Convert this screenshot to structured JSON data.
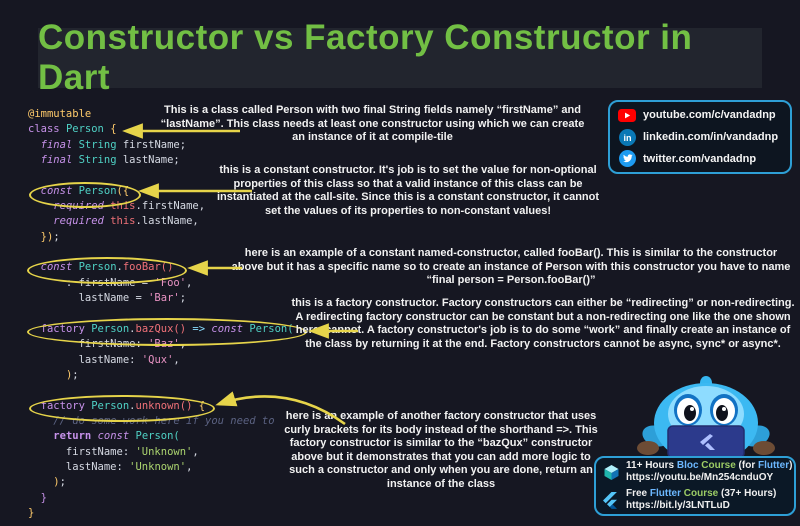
{
  "page": {
    "title": "Constructor vs Factory Constructor in Dart"
  },
  "colors": {
    "accent_yellow": "#e6d44a",
    "title_green": "#72bf44",
    "box_border_blue": "#2e9fd6",
    "bg": "#161722",
    "titlebar_bg": "#22252e"
  },
  "code": {
    "lines": [
      {
        "tokens": [
          {
            "t": "@immutable",
            "c": "yellow"
          }
        ]
      },
      {
        "tokens": [
          {
            "t": "class ",
            "c": "purple"
          },
          {
            "t": "Person ",
            "c": "teal"
          },
          {
            "t": "{",
            "c": "yellow"
          }
        ]
      },
      {
        "tokens": [
          {
            "t": "  "
          },
          {
            "t": "final ",
            "c": "purple",
            "i": 1
          },
          {
            "t": "String ",
            "c": "teal"
          },
          {
            "t": "firstName;"
          }
        ]
      },
      {
        "tokens": [
          {
            "t": "  "
          },
          {
            "t": "final ",
            "c": "purple",
            "i": 1
          },
          {
            "t": "String ",
            "c": "teal"
          },
          {
            "t": "lastName;"
          }
        ]
      },
      {
        "tokens": []
      },
      {
        "tokens": [
          {
            "t": "  "
          },
          {
            "t": "const ",
            "c": "purple",
            "i": 1
          },
          {
            "t": "Person",
            "c": "teal"
          },
          {
            "t": "({",
            "c": "yellow"
          }
        ]
      },
      {
        "tokens": [
          {
            "t": "    "
          },
          {
            "t": "required ",
            "c": "purple",
            "i": 1
          },
          {
            "t": "this",
            "c": "red"
          },
          {
            "t": ".firstName,"
          }
        ]
      },
      {
        "tokens": [
          {
            "t": "    "
          },
          {
            "t": "required ",
            "c": "purple",
            "i": 1
          },
          {
            "t": "this",
            "c": "red"
          },
          {
            "t": ".lastName,"
          }
        ]
      },
      {
        "tokens": [
          {
            "t": "  "
          },
          {
            "t": "})",
            "c": "yellow"
          },
          {
            "t": ";"
          }
        ]
      },
      {
        "tokens": []
      },
      {
        "tokens": [
          {
            "t": "  "
          },
          {
            "t": "const ",
            "c": "purple",
            "i": 1
          },
          {
            "t": "Person",
            "c": "teal"
          },
          {
            "t": "."
          },
          {
            "t": "fooBar()",
            "c": "red"
          }
        ]
      },
      {
        "tokens": [
          {
            "t": "      : firstName = "
          },
          {
            "t": "'Foo'",
            "c": "pink"
          },
          {
            "t": ","
          }
        ]
      },
      {
        "tokens": [
          {
            "t": "        lastName = "
          },
          {
            "t": "'Bar'",
            "c": "pink"
          },
          {
            "t": ";"
          }
        ]
      },
      {
        "tokens": []
      },
      {
        "tokens": [
          {
            "t": "  "
          },
          {
            "t": "factory ",
            "c": "purple"
          },
          {
            "t": "Person",
            "c": "teal"
          },
          {
            "t": "."
          },
          {
            "t": "bazQux()",
            "c": "red"
          },
          {
            "t": " "
          },
          {
            "t": "=>",
            "c": "arrow"
          },
          {
            "t": " "
          },
          {
            "t": "const ",
            "c": "purple",
            "i": 1
          },
          {
            "t": "Person(",
            "c": "teal"
          }
        ]
      },
      {
        "tokens": [
          {
            "t": "        firstName: "
          },
          {
            "t": "'Baz'",
            "c": "pink"
          },
          {
            "t": ","
          }
        ]
      },
      {
        "tokens": [
          {
            "t": "        lastName: "
          },
          {
            "t": "'Qux'",
            "c": "pink"
          },
          {
            "t": ","
          }
        ]
      },
      {
        "tokens": [
          {
            "t": "      "
          },
          {
            "t": ")",
            "c": "yellow"
          },
          {
            "t": ";"
          }
        ]
      },
      {
        "tokens": []
      },
      {
        "tokens": [
          {
            "t": "  "
          },
          {
            "t": "factory ",
            "c": "purple"
          },
          {
            "t": "Person",
            "c": "teal"
          },
          {
            "t": "."
          },
          {
            "t": "unknown()",
            "c": "red"
          },
          {
            "t": " "
          },
          {
            "t": "{",
            "c": "yellow"
          }
        ]
      },
      {
        "tokens": [
          {
            "t": "    "
          },
          {
            "t": "// do some work here if you need to",
            "c": "comment",
            "i": 1
          }
        ]
      },
      {
        "tokens": [
          {
            "t": "    "
          },
          {
            "t": "return ",
            "c": "purple",
            "b": 1
          },
          {
            "t": "const ",
            "c": "purple",
            "i": 1
          },
          {
            "t": "Person(",
            "c": "teal"
          }
        ]
      },
      {
        "tokens": [
          {
            "t": "      firstName: "
          },
          {
            "t": "'Unknown'",
            "c": "green"
          },
          {
            "t": ","
          }
        ]
      },
      {
        "tokens": [
          {
            "t": "      lastName: "
          },
          {
            "t": "'Unknown'",
            "c": "green"
          },
          {
            "t": ","
          }
        ]
      },
      {
        "tokens": [
          {
            "t": "    "
          },
          {
            "t": ")",
            "c": "yellow"
          },
          {
            "t": ";"
          }
        ]
      },
      {
        "tokens": [
          {
            "t": "  "
          },
          {
            "t": "}",
            "c": "purple"
          }
        ]
      },
      {
        "tokens": [
          {
            "t": "}",
            "c": "yellow"
          }
        ]
      }
    ]
  },
  "annotations": [
    {
      "text": "This is a class called Person with two final String fields namely “firstName” and “lastName”. This class needs at least one constructor using which we can create an instance of it at compile-tile"
    },
    {
      "text": "this is a constant constructor. It's job is to set the value for non-optional properties of this class so that a valid instance of this class can be instantiated at the call-site. Since this is a constant constructor, it cannot set the values of its properties to non-constant values!"
    },
    {
      "text": "here is an example of a constant named-constructor, called fooBar(). This is similar to the constructor above but it has a specific name so to create an instance of Person with this constructor you have to name “final person = Person.fooBar()”"
    },
    {
      "text": "this is a factory constructor. Factory constructors can either be “redirecting” or non-redirecting. A redirecting factory constructor can be constant but a non-redirecting one like the one shown here, cannot. A factory constructor's job is to do some “work” and finally create an instance of the class by returning it at the end. Factory constructors cannot be async, sync* or async*."
    },
    {
      "text": "here is an example of another factory constructor that uses curly brackets for its body instead of the shorthand =>. This factory constructor is similar to the “bazQux” constructor above but it demonstrates that you can add more logic to such a constructor and only when you are done, return an instance of the class"
    }
  ],
  "social": {
    "items": [
      {
        "icon": "youtube-icon",
        "label": "youtube.com/c/vandadnp"
      },
      {
        "icon": "linkedin-icon",
        "label": "linkedin.com/in/vandadnp"
      },
      {
        "icon": "twitter-icon",
        "label": "twitter.com/vandadnp"
      }
    ]
  },
  "courses": {
    "bloc_line": [
      {
        "t": "11+ Hours ",
        "c": "w"
      },
      {
        "t": "Bloc",
        "c": "blue"
      },
      {
        "t": " Course",
        "c": "green"
      },
      {
        "t": " (for ",
        "c": "w"
      },
      {
        "t": "Flutter",
        "c": "blue"
      },
      {
        "t": ")",
        "c": "w"
      }
    ],
    "bloc_url": "https://youtu.be/Mn254cnduOY",
    "flutter_line": [
      {
        "t": "Free ",
        "c": "w"
      },
      {
        "t": "Flutter",
        "c": "blue"
      },
      {
        "t": " Course",
        "c": "green"
      },
      {
        "t": " (37+ Hours)",
        "c": "w"
      }
    ],
    "flutter_url": "https://bit.ly/3LNTLuD"
  }
}
